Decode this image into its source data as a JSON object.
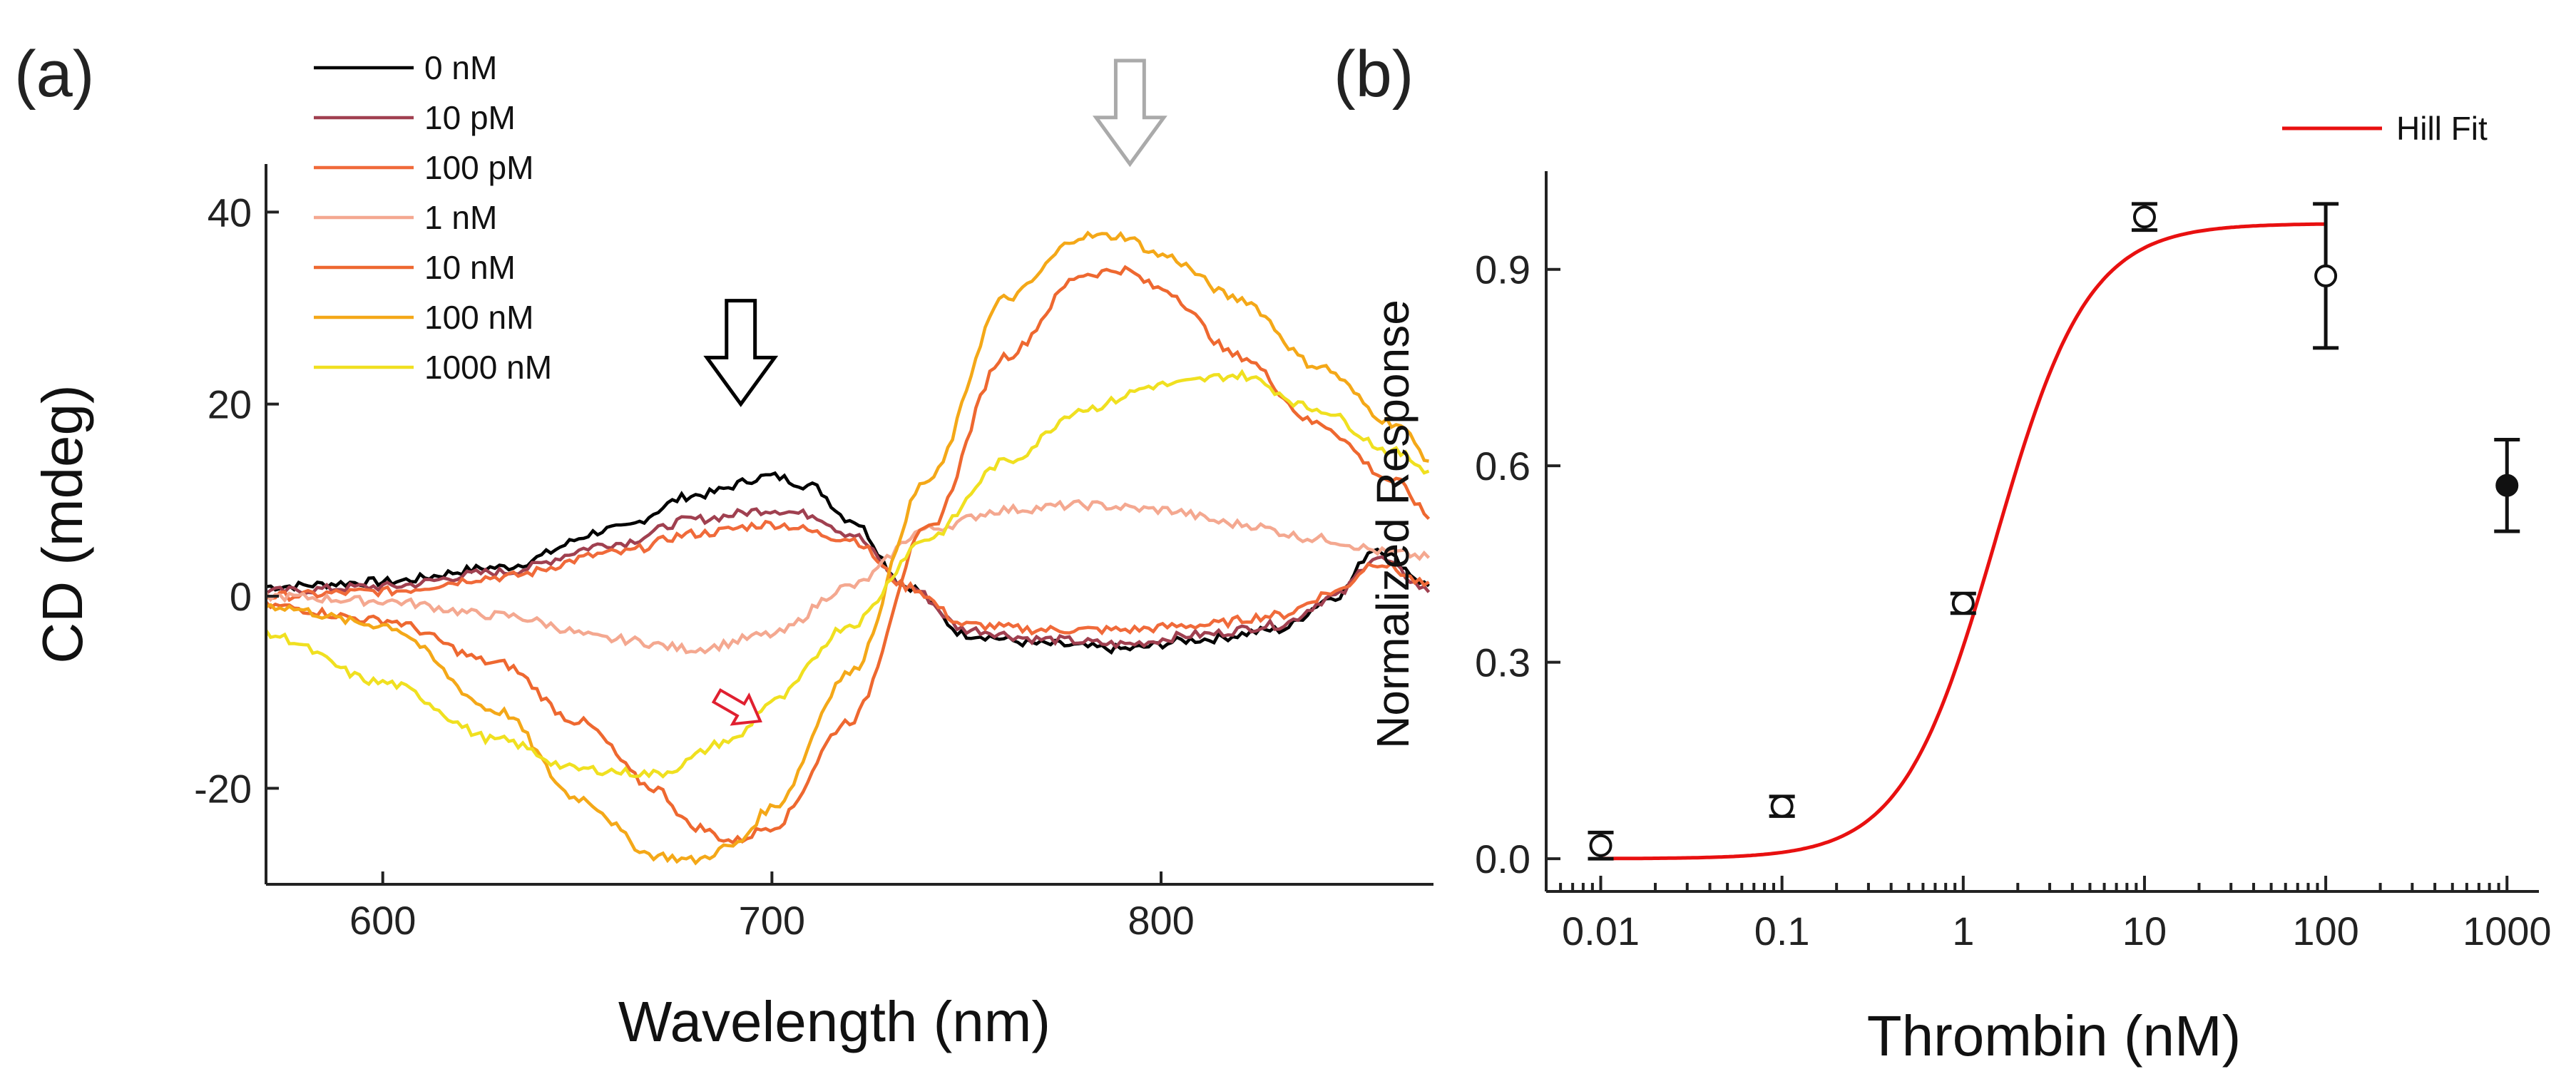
{
  "panel_a_label": "(a)",
  "panel_b_label": "(b)",
  "chart_data": [
    {
      "type": "line",
      "title": "",
      "xlabel": "Wavelength (nm)",
      "ylabel": "CD (mdeg)",
      "xlim": [
        570,
        870
      ],
      "ylim": [
        -30,
        45
      ],
      "xticks": [
        600,
        700,
        800
      ],
      "yticks": [
        -20,
        0,
        20,
        40
      ],
      "legend_position": "top-left",
      "series": [
        {
          "name": "0 nM",
          "color": "#000000",
          "x": [
            570,
            600,
            630,
            660,
            680,
            700,
            710,
            720,
            735,
            750,
            770,
            790,
            810,
            830,
            845,
            855,
            870
          ],
          "y": [
            1,
            1.5,
            3,
            7,
            10.5,
            12.5,
            11.5,
            8,
            1,
            -4,
            -5,
            -5.5,
            -4.5,
            -3.5,
            0,
            5,
            1
          ]
        },
        {
          "name": "10 pM",
          "color": "#a04050",
          "x": [
            570,
            600,
            630,
            660,
            680,
            700,
            710,
            720,
            735,
            750,
            770,
            790,
            810,
            830,
            845,
            855,
            870
          ],
          "y": [
            0.5,
            1,
            2.5,
            5.5,
            8,
            9,
            8.5,
            6.5,
            1,
            -3.5,
            -4.5,
            -5,
            -4,
            -3,
            0,
            4,
            0.5
          ]
        },
        {
          "name": "100 pM",
          "color": "#f06a3a",
          "x": [
            570,
            600,
            630,
            660,
            680,
            700,
            720,
            735,
            750,
            770,
            790,
            810,
            830,
            845,
            855,
            870
          ],
          "y": [
            0,
            0.5,
            2,
            4.5,
            6.5,
            7.5,
            6,
            1,
            -3,
            -3.5,
            -3.5,
            -3,
            -2,
            0.5,
            3.5,
            1
          ]
        },
        {
          "name": "1 nM",
          "color": "#f4a890",
          "x": [
            570,
            600,
            630,
            660,
            680,
            700,
            720,
            740,
            760,
            780,
            800,
            820,
            840,
            860,
            870
          ],
          "y": [
            0,
            -0.5,
            -2,
            -4.5,
            -5.5,
            -4,
            1,
            7,
            9,
            9.5,
            9,
            7.5,
            6,
            4.5,
            4
          ]
        },
        {
          "name": "10 nM",
          "color": "#ee6830",
          "x": [
            570,
            600,
            630,
            650,
            670,
            680,
            690,
            700,
            720,
            740,
            760,
            780,
            790,
            800,
            820,
            840,
            860,
            870
          ],
          "y": [
            -1,
            -2.5,
            -7,
            -13,
            -20,
            -24,
            -25.5,
            -24,
            -13,
            7,
            25,
            33.5,
            34,
            32,
            25,
            18,
            12,
            8
          ]
        },
        {
          "name": "100 nM",
          "color": "#f4a818",
          "x": [
            570,
            600,
            630,
            650,
            670,
            680,
            690,
            700,
            720,
            740,
            760,
            780,
            790,
            800,
            820,
            840,
            860,
            870
          ],
          "y": [
            -1,
            -3,
            -12,
            -21,
            -27,
            -27.5,
            -26,
            -22,
            -8,
            12,
            31,
            37.5,
            37.5,
            35.5,
            31,
            24,
            18,
            14
          ]
        },
        {
          "name": "1000 nM",
          "color": "#f0e020",
          "x": [
            570,
            600,
            630,
            650,
            670,
            690,
            700,
            720,
            740,
            760,
            780,
            800,
            820,
            840,
            860,
            870
          ],
          "y": [
            -4,
            -9,
            -15,
            -18,
            -18.5,
            -15,
            -11,
            -3,
            6,
            14,
            19.5,
            22,
            23,
            19.5,
            15,
            13
          ]
        }
      ],
      "annotations": [
        {
          "label": "black-arrow",
          "x": 692,
          "y": 20,
          "color": "#000000"
        },
        {
          "label": "grey-arrow",
          "x": 792,
          "y": 45,
          "color": "#aaaaaa"
        },
        {
          "label": "red-arrow",
          "x": 697,
          "y": -13,
          "color": "#e02030"
        }
      ]
    },
    {
      "type": "scatter",
      "title": "",
      "xlabel": "Thrombin (nM)",
      "ylabel": "Normalized Response",
      "xscale": "log",
      "xlim": [
        0.005,
        1500
      ],
      "ylim": [
        -0.05,
        1.05
      ],
      "xticks": [
        0.01,
        0.1,
        1,
        10,
        100,
        1000
      ],
      "xtick_labels": [
        "0.01",
        "0.1",
        "1",
        "10",
        "100",
        "1000"
      ],
      "yticks": [
        0.0,
        0.3,
        0.6,
        0.9
      ],
      "ytick_labels": [
        "0.0",
        "0.3",
        "0.6",
        "0.9"
      ],
      "legend": "Hill Fit",
      "legend_position": "top-right",
      "points": [
        {
          "x": 0.01,
          "y": 0.02,
          "err": 0.02,
          "filled": false
        },
        {
          "x": 0.1,
          "y": 0.08,
          "err": 0.015,
          "filled": false
        },
        {
          "x": 1,
          "y": 0.39,
          "err": 0.015,
          "filled": false
        },
        {
          "x": 10,
          "y": 0.98,
          "err": 0.02,
          "filled": false
        },
        {
          "x": 100,
          "y": 0.89,
          "err": 0.11,
          "filled": false
        },
        {
          "x": 1000,
          "y": 0.57,
          "err": 0.07,
          "filled": true
        }
      ],
      "fit": {
        "name": "Hill Fit",
        "color": "#e81010",
        "ymax": 0.97,
        "ec50": 1.5,
        "n": 1.7,
        "x_start": 0.01,
        "x_end": 100
      }
    }
  ]
}
